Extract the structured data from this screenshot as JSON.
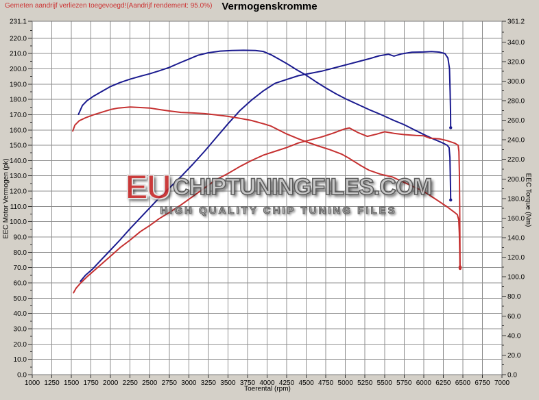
{
  "header": {
    "note": "Gemeten aandrijf verliezen toegevoegd!(Aandrijf rendement: 95.0%)",
    "title": "Vermogenskromme"
  },
  "watermark": {
    "eu": "EU",
    "main": "CHIPTUNINGFILES.COM",
    "sub": "HIGH QUALITY CHIP TUNING FILES"
  },
  "chart_data": {
    "type": "line",
    "title": "Vermogenskromme",
    "xlabel": "Toerental (rpm)",
    "ylabel_left": "EEC Motor Vermogen (pk)",
    "ylabel_right": "EEC Torque (Nm)",
    "xlim": [
      1000,
      7000
    ],
    "ylim_left": [
      0,
      231.1
    ],
    "ylim_right": [
      0,
      361.2
    ],
    "grid": true,
    "legend": "none",
    "colors": {
      "tuned": "#1a1a8f",
      "original": "#c53030",
      "grid": "#8f8f8f",
      "plot_bg": "#ffffff",
      "page_bg": "#d4d0c8",
      "note_text": "#cc3333"
    },
    "x_ticks": [
      1000,
      1250,
      1500,
      1750,
      2000,
      2250,
      2500,
      2750,
      3000,
      3250,
      3500,
      3750,
      4000,
      4250,
      4500,
      4750,
      5000,
      5250,
      5500,
      5750,
      6000,
      6250,
      6500,
      6750,
      7000
    ],
    "y_ticks_left": [
      [
        231.1,
        "231.1"
      ],
      [
        220,
        "220.0"
      ],
      [
        210,
        "210.0"
      ],
      [
        200,
        "200.0"
      ],
      [
        190,
        "190.0"
      ],
      [
        180,
        "180.0"
      ],
      [
        170,
        "170.0"
      ],
      [
        160,
        "160.0"
      ],
      [
        150,
        "150.0"
      ],
      [
        140,
        "140.0"
      ],
      [
        130,
        "130.0"
      ],
      [
        120,
        "120.0"
      ],
      [
        110,
        "110.0"
      ],
      [
        100,
        "100.0"
      ],
      [
        90,
        "90.0"
      ],
      [
        80,
        "80.0"
      ],
      [
        70,
        "70.0"
      ],
      [
        60,
        "60.0"
      ],
      [
        50,
        "50.0"
      ],
      [
        40,
        "40.0"
      ],
      [
        30,
        "30.0"
      ],
      [
        20,
        "20.0"
      ],
      [
        10,
        "10.0"
      ],
      [
        0,
        "0.0"
      ]
    ],
    "y_ticks_right": [
      [
        361.2,
        "361.2"
      ],
      [
        340,
        "340.0"
      ],
      [
        320,
        "320.0"
      ],
      [
        300,
        "300.0"
      ],
      [
        280,
        "280.0"
      ],
      [
        260,
        "260.0"
      ],
      [
        240,
        "240.0"
      ],
      [
        220,
        "220.0"
      ],
      [
        200,
        "200.0"
      ],
      [
        180,
        "180.0"
      ],
      [
        160,
        "160.0"
      ],
      [
        140,
        "140.0"
      ],
      [
        120,
        "120.0"
      ],
      [
        100,
        "100.0"
      ],
      [
        80,
        "80.0"
      ],
      [
        60,
        "60.0"
      ],
      [
        40,
        "40.0"
      ],
      [
        20,
        "20.0"
      ],
      [
        0,
        "0.0"
      ]
    ],
    "series": [
      {
        "name": "power-tuned-pk",
        "axis": "left",
        "color": "#1a1a8f",
        "points": [
          [
            1615,
            61
          ],
          [
            1680,
            65
          ],
          [
            1770,
            69
          ],
          [
            1870,
            74.5
          ],
          [
            2000,
            81.5
          ],
          [
            2120,
            88
          ],
          [
            2250,
            95.5
          ],
          [
            2380,
            102.5
          ],
          [
            2500,
            109
          ],
          [
            2620,
            115.5
          ],
          [
            2750,
            122
          ],
          [
            2900,
            129.5
          ],
          [
            3050,
            137.5
          ],
          [
            3200,
            146
          ],
          [
            3350,
            155
          ],
          [
            3500,
            164
          ],
          [
            3650,
            172.5
          ],
          [
            3800,
            179.5
          ],
          [
            3950,
            185.5
          ],
          [
            4100,
            190.5
          ],
          [
            4250,
            193
          ],
          [
            4400,
            195.5
          ],
          [
            4550,
            197
          ],
          [
            4700,
            198.5
          ],
          [
            4850,
            200.5
          ],
          [
            5000,
            202.5
          ],
          [
            5150,
            204.5
          ],
          [
            5300,
            206.5
          ],
          [
            5430,
            208.5
          ],
          [
            5550,
            209.5
          ],
          [
            5620,
            208.3
          ],
          [
            5720,
            209.8
          ],
          [
            5850,
            210.8
          ],
          [
            6000,
            211
          ],
          [
            6100,
            211.3
          ],
          [
            6200,
            210.9
          ],
          [
            6270,
            210
          ],
          [
            6310,
            207
          ],
          [
            6330,
            200
          ],
          [
            6338,
            185
          ],
          [
            6343,
            172
          ],
          [
            6345,
            161.5
          ]
        ]
      },
      {
        "name": "torque-tuned-nm",
        "axis": "right",
        "color": "#1a1a8f",
        "points": [
          [
            1590,
            266
          ],
          [
            1640,
            275
          ],
          [
            1700,
            280
          ],
          [
            1780,
            284.5
          ],
          [
            1900,
            290
          ],
          [
            2000,
            294.5
          ],
          [
            2120,
            298.5
          ],
          [
            2250,
            302
          ],
          [
            2380,
            305
          ],
          [
            2500,
            307.5
          ],
          [
            2620,
            310.5
          ],
          [
            2750,
            314
          ],
          [
            2880,
            318.5
          ],
          [
            3000,
            322.5
          ],
          [
            3120,
            326.5
          ],
          [
            3250,
            329
          ],
          [
            3400,
            330.7
          ],
          [
            3550,
            331.3
          ],
          [
            3700,
            331.5
          ],
          [
            3850,
            331.3
          ],
          [
            3950,
            330.3
          ],
          [
            4050,
            327
          ],
          [
            4150,
            322.5
          ],
          [
            4250,
            318
          ],
          [
            4380,
            311.5
          ],
          [
            4500,
            306
          ],
          [
            4620,
            299.5
          ],
          [
            4750,
            293
          ],
          [
            4880,
            287
          ],
          [
            5000,
            282
          ],
          [
            5150,
            276.5
          ],
          [
            5300,
            271
          ],
          [
            5450,
            266
          ],
          [
            5600,
            260.5
          ],
          [
            5750,
            255.5
          ],
          [
            5900,
            249.5
          ],
          [
            6000,
            245.5
          ],
          [
            6120,
            241
          ],
          [
            6250,
            236.5
          ],
          [
            6300,
            234.5
          ],
          [
            6325,
            232
          ],
          [
            6335,
            222
          ],
          [
            6340,
            205
          ],
          [
            6343,
            190
          ],
          [
            6345,
            178.5
          ]
        ]
      },
      {
        "name": "power-original-pk",
        "axis": "left",
        "color": "#c53030",
        "points": [
          [
            1527,
            53.5
          ],
          [
            1560,
            56.5
          ],
          [
            1620,
            60
          ],
          [
            1700,
            64
          ],
          [
            1800,
            68.5
          ],
          [
            1900,
            73
          ],
          [
            2000,
            77.5
          ],
          [
            2120,
            83
          ],
          [
            2250,
            88
          ],
          [
            2380,
            93.5
          ],
          [
            2500,
            97.5
          ],
          [
            2620,
            102
          ],
          [
            2750,
            106
          ],
          [
            2900,
            111
          ],
          [
            3050,
            116.5
          ],
          [
            3200,
            122
          ],
          [
            3350,
            127.5
          ],
          [
            3500,
            131.5
          ],
          [
            3650,
            136
          ],
          [
            3800,
            140
          ],
          [
            3950,
            143.5
          ],
          [
            4100,
            146
          ],
          [
            4250,
            148.5
          ],
          [
            4400,
            151.5
          ],
          [
            4550,
            153.5
          ],
          [
            4700,
            155.5
          ],
          [
            4850,
            158
          ],
          [
            4980,
            160.5
          ],
          [
            5050,
            161.3
          ],
          [
            5160,
            158.3
          ],
          [
            5280,
            155.8
          ],
          [
            5400,
            157.3
          ],
          [
            5500,
            158.8
          ],
          [
            5620,
            157.8
          ],
          [
            5750,
            157
          ],
          [
            5900,
            156.4
          ],
          [
            6000,
            156.2
          ],
          [
            6080,
            154.6
          ],
          [
            6200,
            154.2
          ],
          [
            6300,
            153
          ],
          [
            6400,
            151.3
          ],
          [
            6440,
            150
          ],
          [
            6450,
            146
          ],
          [
            6456,
            132
          ],
          [
            6460,
            110
          ],
          [
            6463,
            88
          ],
          [
            6465,
            70.5
          ]
        ]
      },
      {
        "name": "torque-original-nm",
        "axis": "right",
        "color": "#c53030",
        "points": [
          [
            1518,
            249
          ],
          [
            1545,
            255
          ],
          [
            1600,
            259.5
          ],
          [
            1680,
            262.5
          ],
          [
            1780,
            265.5
          ],
          [
            1900,
            268.5
          ],
          [
            2000,
            271
          ],
          [
            2100,
            272.5
          ],
          [
            2250,
            273.5
          ],
          [
            2380,
            273
          ],
          [
            2500,
            272.5
          ],
          [
            2620,
            271
          ],
          [
            2750,
            269.5
          ],
          [
            2900,
            268
          ],
          [
            3050,
            267.5
          ],
          [
            3200,
            266.8
          ],
          [
            3350,
            265.5
          ],
          [
            3500,
            264
          ],
          [
            3650,
            262
          ],
          [
            3800,
            259.8
          ],
          [
            3950,
            256.5
          ],
          [
            4050,
            254
          ],
          [
            4150,
            250
          ],
          [
            4250,
            246
          ],
          [
            4400,
            241
          ],
          [
            4500,
            238
          ],
          [
            4650,
            233.8
          ],
          [
            4800,
            230
          ],
          [
            4950,
            225.5
          ],
          [
            5050,
            221
          ],
          [
            5200,
            213.5
          ],
          [
            5300,
            209
          ],
          [
            5450,
            204.8
          ],
          [
            5600,
            202
          ],
          [
            5750,
            196.5
          ],
          [
            5900,
            191
          ],
          [
            6000,
            187.3
          ],
          [
            6150,
            179.5
          ],
          [
            6300,
            171.5
          ],
          [
            6400,
            165.5
          ],
          [
            6430,
            163.5
          ],
          [
            6448,
            158
          ],
          [
            6455,
            145
          ],
          [
            6460,
            125
          ],
          [
            6463,
            112
          ],
          [
            6465,
            108.5
          ]
        ]
      }
    ]
  }
}
